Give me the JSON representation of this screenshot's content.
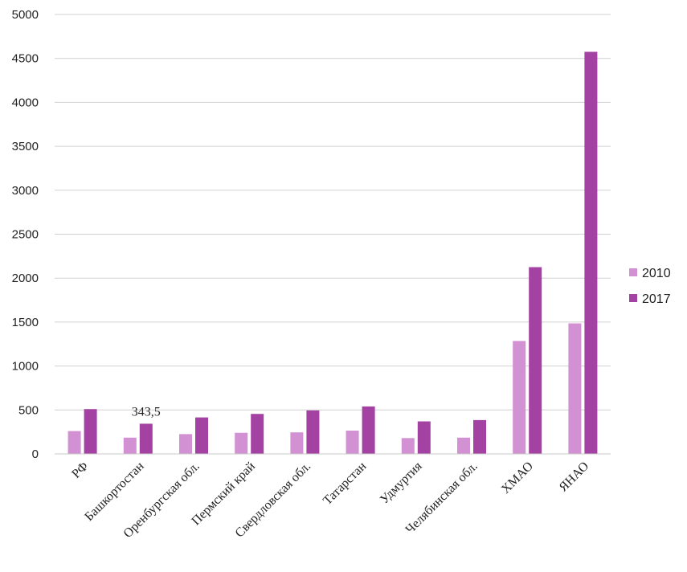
{
  "chart_data": {
    "type": "bar",
    "categories": [
      "РФ",
      "Башкортостан",
      "Оренбургская обл.",
      "Пермский край",
      "Свердловская обл.",
      "Татарстан",
      "Удмуртия",
      "Челябинская обл.",
      "ХМАО",
      "ЯНАО"
    ],
    "series": [
      {
        "name": "2010",
        "color": "#d291d2",
        "values": [
          260,
          185,
          225,
          240,
          245,
          265,
          180,
          185,
          1285,
          1485
        ]
      },
      {
        "name": "2017",
        "color": "#a442a4",
        "values": [
          510,
          343.5,
          415,
          455,
          495,
          540,
          370,
          385,
          2125,
          4575
        ]
      }
    ],
    "data_labels": [
      {
        "series": 1,
        "index": 1,
        "text": "343,5"
      }
    ],
    "yticks": [
      0,
      500,
      1000,
      1500,
      2000,
      2500,
      3000,
      3500,
      4000,
      4500,
      5000
    ],
    "ylim": [
      0,
      5000
    ],
    "grid": true,
    "legend": "right",
    "title": "",
    "xlabel": "",
    "ylabel": ""
  }
}
